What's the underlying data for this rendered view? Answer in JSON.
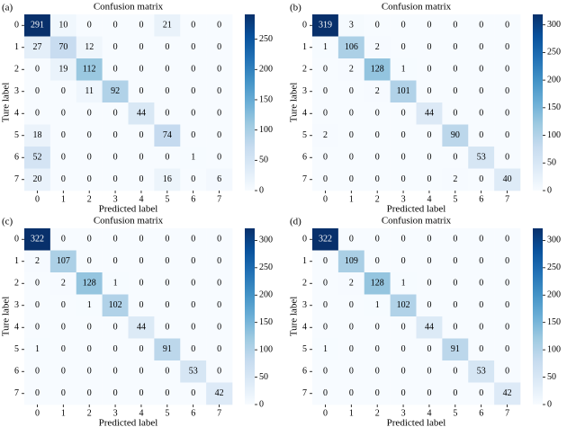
{
  "chart_data": [
    {
      "type": "heatmap",
      "panel_label": "(a)",
      "title": "Confusion matrix",
      "xlabel": "Predicted label",
      "ylabel": "Ture label",
      "xcategories": [
        "0",
        "1",
        "2",
        "3",
        "4",
        "5",
        "6",
        "7"
      ],
      "ycategories": [
        "0",
        "1",
        "2",
        "3",
        "4",
        "5",
        "6",
        "7"
      ],
      "colormap": "Blues",
      "values": [
        [
          291,
          10,
          0,
          0,
          0,
          21,
          0,
          0
        ],
        [
          27,
          70,
          12,
          0,
          0,
          0,
          0,
          0
        ],
        [
          0,
          19,
          112,
          0,
          0,
          0,
          0,
          0
        ],
        [
          0,
          0,
          11,
          92,
          0,
          0,
          0,
          0
        ],
        [
          0,
          0,
          0,
          0,
          44,
          0,
          0,
          0
        ],
        [
          18,
          0,
          0,
          0,
          0,
          74,
          0,
          0
        ],
        [
          52,
          0,
          0,
          0,
          0,
          0,
          1,
          0
        ],
        [
          20,
          0,
          0,
          0,
          0,
          16,
          0,
          6
        ]
      ],
      "zlim": [
        0,
        291
      ],
      "zticks": [
        0,
        50,
        100,
        150,
        200,
        250
      ]
    },
    {
      "type": "heatmap",
      "panel_label": "(b)",
      "title": "Confusion matrix",
      "xlabel": "Predicted label",
      "ylabel": "Ture label",
      "xcategories": [
        "0",
        "1",
        "2",
        "3",
        "4",
        "5",
        "6",
        "7"
      ],
      "ycategories": [
        "0",
        "1",
        "2",
        "3",
        "4",
        "5",
        "6",
        "7"
      ],
      "colormap": "Blues",
      "values": [
        [
          319,
          3,
          0,
          0,
          0,
          0,
          0,
          0
        ],
        [
          1,
          106,
          2,
          0,
          0,
          0,
          0,
          0
        ],
        [
          0,
          2,
          128,
          1,
          0,
          0,
          0,
          0
        ],
        [
          0,
          0,
          2,
          101,
          0,
          0,
          0,
          0
        ],
        [
          0,
          0,
          0,
          0,
          44,
          0,
          0,
          0
        ],
        [
          2,
          0,
          0,
          0,
          0,
          90,
          0,
          0
        ],
        [
          0,
          0,
          0,
          0,
          0,
          0,
          53,
          0
        ],
        [
          0,
          0,
          0,
          0,
          0,
          2,
          0,
          40
        ]
      ],
      "zlim": [
        0,
        319
      ],
      "zticks": [
        0,
        50,
        100,
        150,
        200,
        250,
        300
      ]
    },
    {
      "type": "heatmap",
      "panel_label": "(c)",
      "title": "Confusion matrix",
      "xlabel": "Predicted label",
      "ylabel": "Ture label",
      "xcategories": [
        "0",
        "1",
        "2",
        "3",
        "4",
        "5",
        "6",
        "7"
      ],
      "ycategories": [
        "0",
        "1",
        "2",
        "3",
        "4",
        "5",
        "6",
        "7"
      ],
      "colormap": "Blues",
      "values": [
        [
          322,
          0,
          0,
          0,
          0,
          0,
          0,
          0
        ],
        [
          2,
          107,
          0,
          0,
          0,
          0,
          0,
          0
        ],
        [
          0,
          2,
          128,
          1,
          0,
          0,
          0,
          0
        ],
        [
          0,
          0,
          1,
          102,
          0,
          0,
          0,
          0
        ],
        [
          0,
          0,
          0,
          0,
          44,
          0,
          0,
          0
        ],
        [
          1,
          0,
          0,
          0,
          0,
          91,
          0,
          0
        ],
        [
          0,
          0,
          0,
          0,
          0,
          0,
          53,
          0
        ],
        [
          0,
          0,
          0,
          0,
          0,
          0,
          0,
          42
        ]
      ],
      "zlim": [
        0,
        322
      ],
      "zticks": [
        0,
        50,
        100,
        150,
        200,
        250,
        300
      ]
    },
    {
      "type": "heatmap",
      "panel_label": "(d)",
      "title": "Confusion matrix",
      "xlabel": "Predicted label",
      "ylabel": "Ture label",
      "xcategories": [
        "0",
        "1",
        "2",
        "3",
        "4",
        "5",
        "6",
        "7"
      ],
      "ycategories": [
        "0",
        "1",
        "2",
        "3",
        "4",
        "5",
        "6",
        "7"
      ],
      "colormap": "Blues",
      "values": [
        [
          322,
          0,
          0,
          0,
          0,
          0,
          0,
          0
        ],
        [
          0,
          109,
          0,
          0,
          0,
          0,
          0,
          0
        ],
        [
          0,
          2,
          128,
          1,
          0,
          0,
          0,
          0
        ],
        [
          0,
          0,
          1,
          102,
          0,
          0,
          0,
          0
        ],
        [
          0,
          0,
          0,
          0,
          44,
          0,
          0,
          0
        ],
        [
          1,
          0,
          0,
          0,
          0,
          91,
          0,
          0
        ],
        [
          0,
          0,
          0,
          0,
          0,
          0,
          53,
          0
        ],
        [
          0,
          0,
          0,
          0,
          0,
          0,
          0,
          42
        ]
      ],
      "zlim": [
        0,
        322
      ],
      "zticks": [
        0,
        50,
        100,
        150,
        200,
        250,
        300
      ]
    }
  ]
}
